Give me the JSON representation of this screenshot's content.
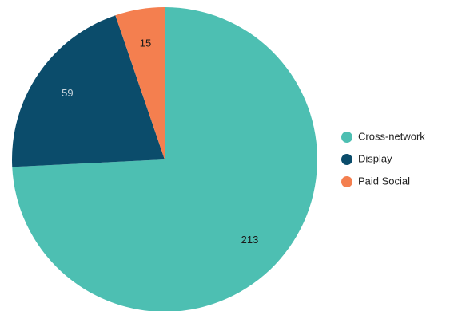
{
  "chart_data": {
    "type": "pie",
    "categories": [
      "Cross-network",
      "Display",
      "Paid Social"
    ],
    "values": [
      213,
      59,
      15
    ],
    "labels": [
      "213",
      "59",
      "15"
    ],
    "colors": [
      "#4dbfb2",
      "#0b4c6b",
      "#f47f4f"
    ],
    "label_colors": [
      "#1a1a1a",
      "#c8d4dc",
      "#1a1a1a"
    ],
    "start_angle_deg": 0,
    "direction": "clockwise",
    "legend_placement": "right"
  }
}
